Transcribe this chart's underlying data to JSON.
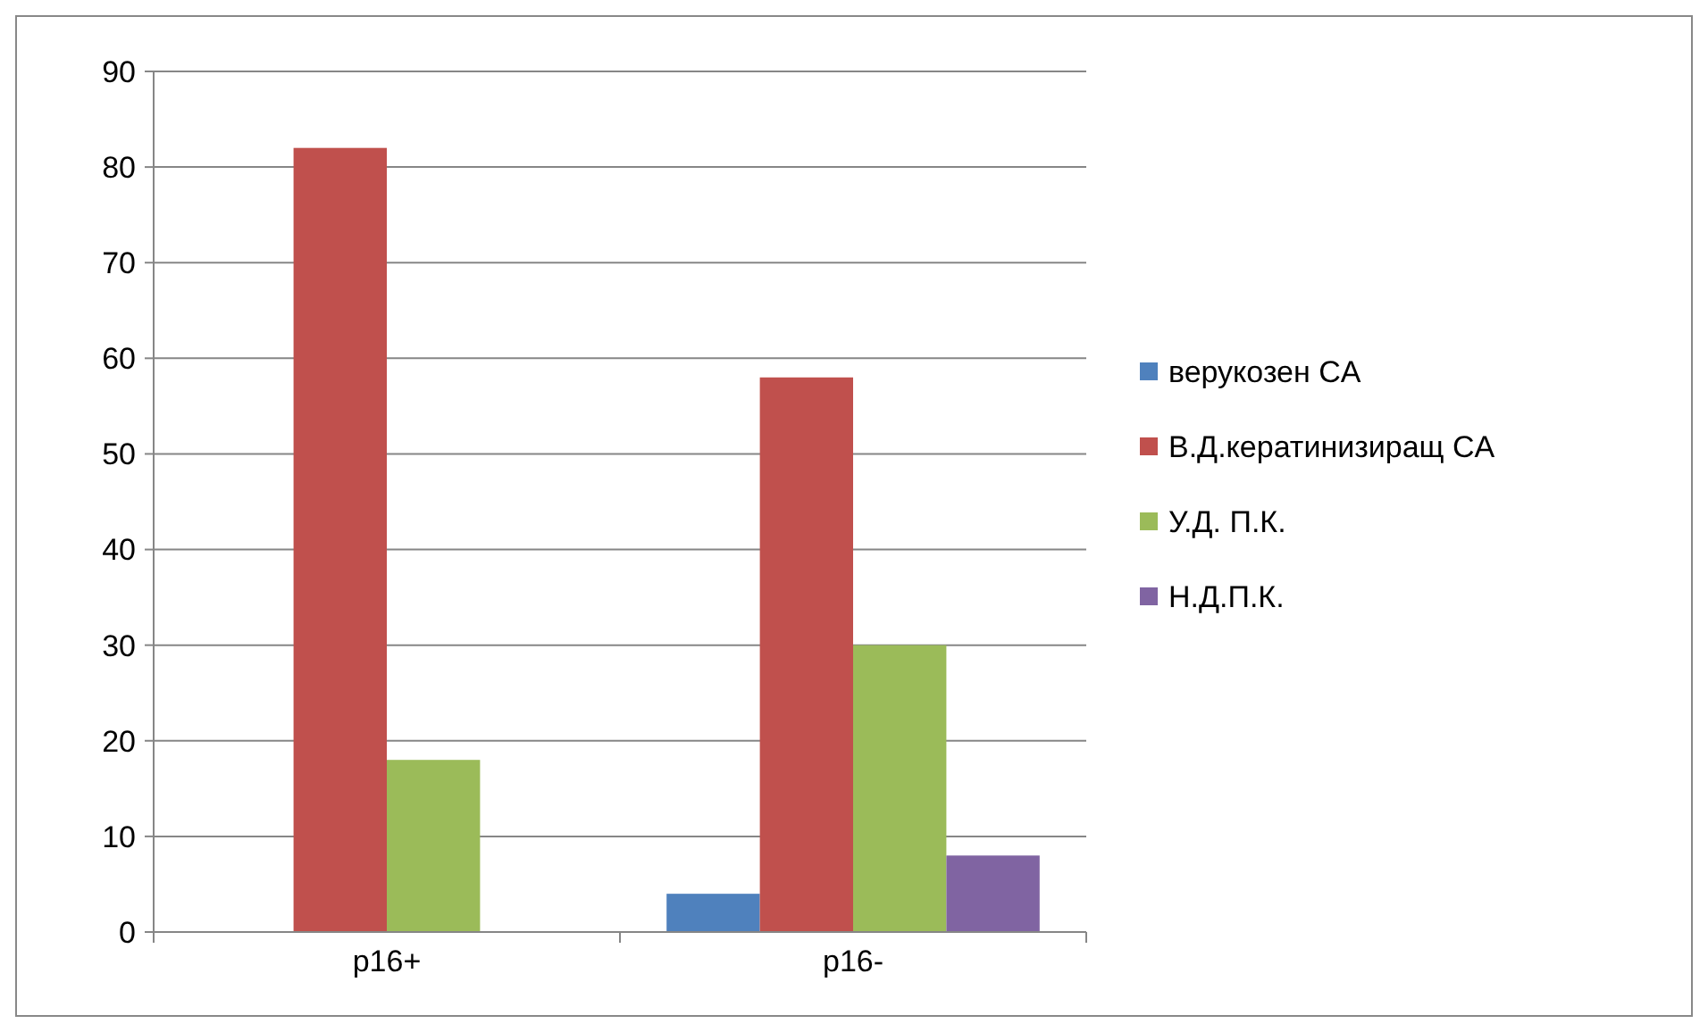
{
  "chart_data": {
    "type": "bar",
    "categories": [
      "p16+",
      "p16-"
    ],
    "series": [
      {
        "name": "верукозен CA",
        "color": "#4f81bd",
        "values": [
          0,
          4
        ]
      },
      {
        "name": "В.Д.кератинизиращ CA",
        "color": "#c0504d",
        "values": [
          82,
          58
        ]
      },
      {
        "name": "У.Д. П.К.",
        "color": "#9bbb59",
        "values": [
          18,
          30
        ]
      },
      {
        "name": "Н.Д.П.К.",
        "color": "#8064a2",
        "values": [
          0,
          8
        ]
      }
    ],
    "ylim": [
      0,
      90
    ],
    "yticks": [
      0,
      10,
      20,
      30,
      40,
      50,
      60,
      70,
      80,
      90
    ],
    "grid": "y",
    "legend": "right"
  }
}
